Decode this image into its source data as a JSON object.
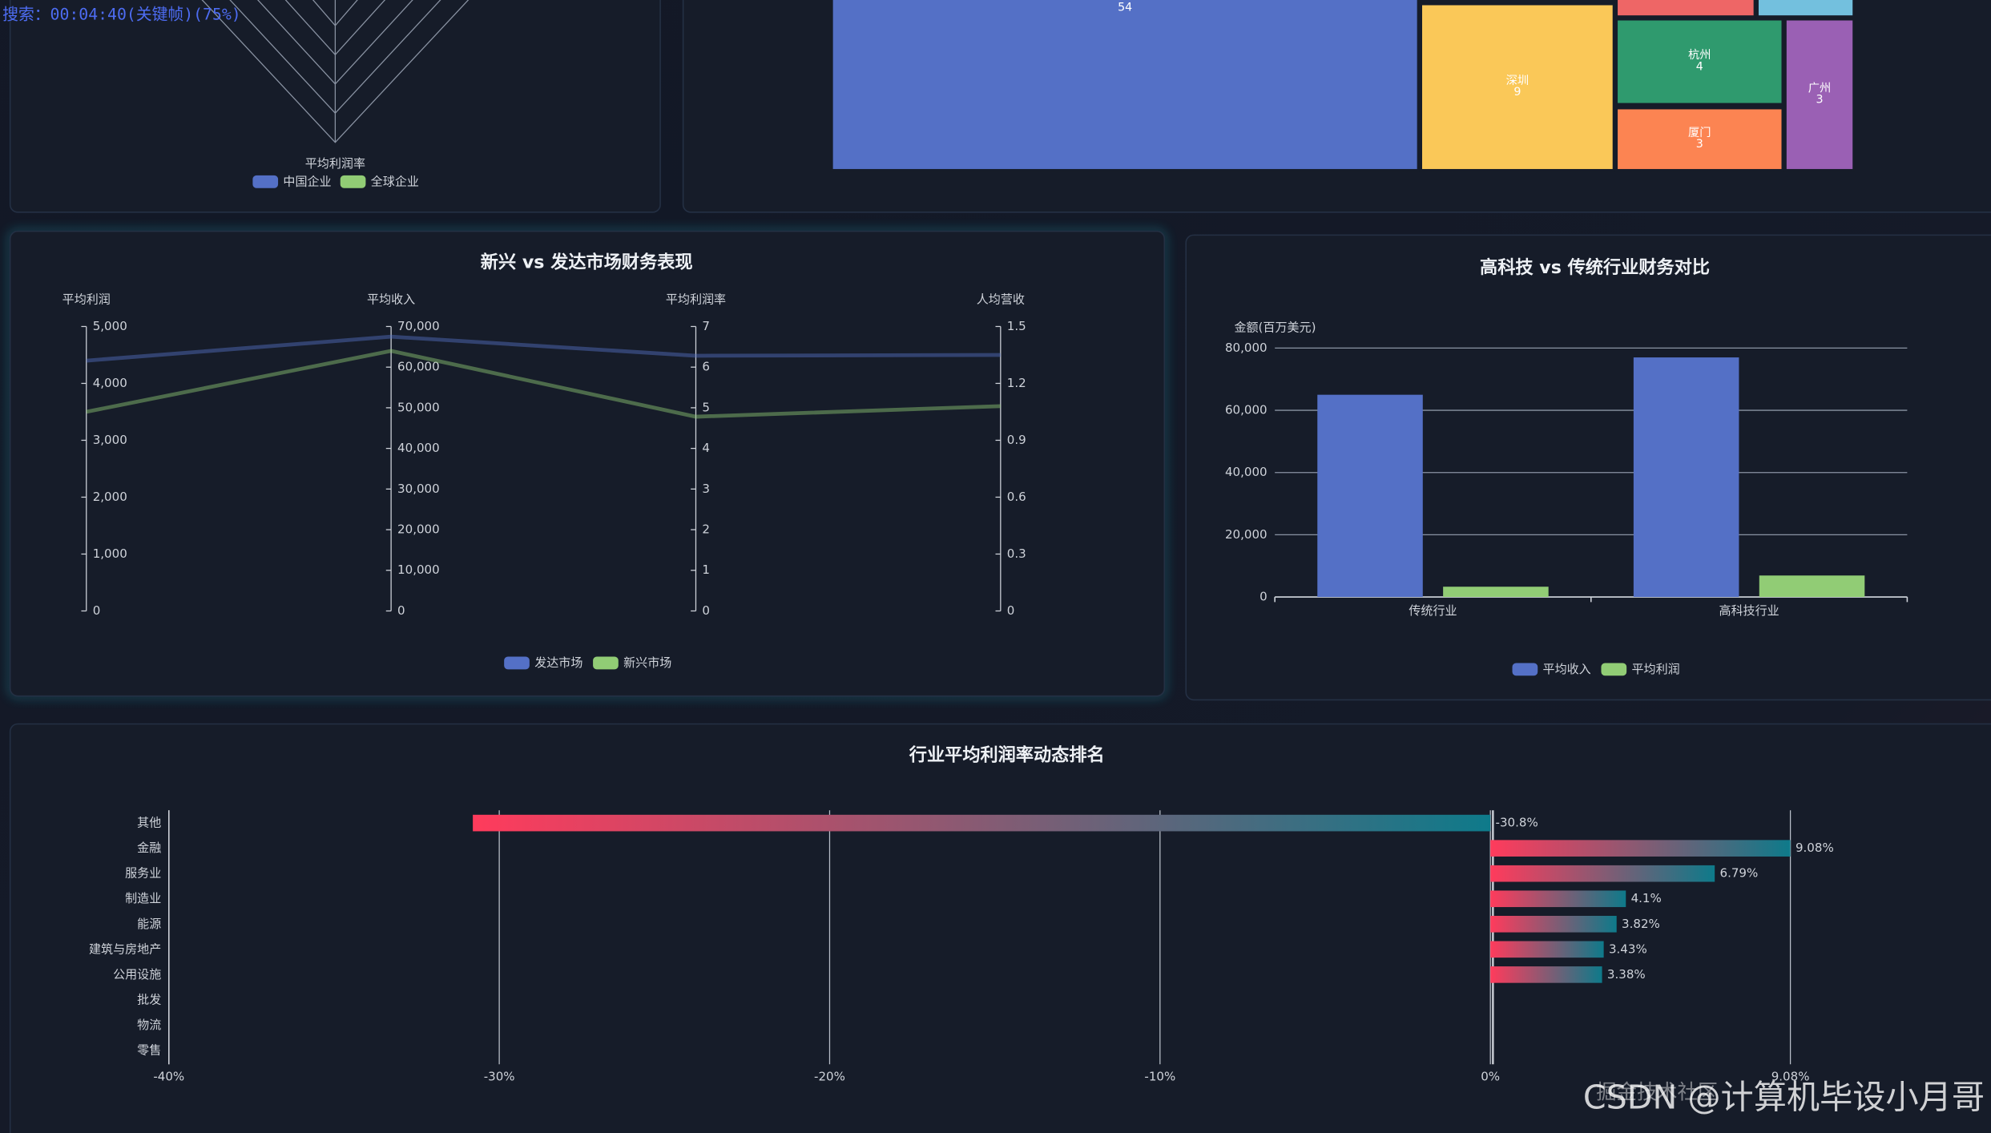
{
  "chart_data": [
    {
      "type": "radar",
      "indicators": [
        "平均利润率"
      ],
      "series": [
        {
          "name": "中国企业",
          "color": "#5470c6"
        },
        {
          "name": "全球企业",
          "color": "#91cc75"
        }
      ]
    },
    {
      "type": "treemap",
      "categories": [
        null,
        "深圳",
        "杭州",
        "厦门",
        "广州"
      ],
      "values": [
        54,
        9,
        4,
        3,
        3
      ],
      "colors": [
        "#5470c6",
        "#fac858",
        "#2f9a6e",
        "#fc8452",
        "#9a60b4"
      ]
    },
    {
      "type": "parallel",
      "title": "新兴 vs 发达市场财务表现",
      "axes": [
        {
          "name": "平均利润",
          "ylim": [
            0,
            5000
          ],
          "yticks": [
            0,
            {
              "value": 1000,
              "label": "1,000"
            },
            {
              "value": 2000,
              "label": "2,000"
            },
            {
              "value": 3000,
              "label": "3,000"
            },
            {
              "value": 4000,
              "label": "4,000"
            },
            {
              "value": 5000,
              "label": "5,000"
            }
          ]
        },
        {
          "name": "平均收入",
          "ylim": [
            0,
            70000
          ],
          "yticks": [
            0,
            {
              "value": 10000,
              "label": "10,000"
            },
            {
              "value": 20000,
              "label": "20,000"
            },
            {
              "value": 30000,
              "label": "30,000"
            },
            {
              "value": 40000,
              "label": "40,000"
            },
            {
              "value": 50000,
              "label": "50,000"
            },
            {
              "value": 60000,
              "label": "60,000"
            },
            {
              "value": 70000,
              "label": "70,000"
            }
          ]
        },
        {
          "name": "平均利润率",
          "ylim": [
            0,
            7
          ],
          "yticks": [
            0,
            1,
            2,
            3,
            4,
            5,
            6,
            7
          ]
        },
        {
          "name": "人均营收",
          "ylim": [
            0,
            1.5
          ],
          "yticks": [
            0,
            0.3,
            0.6,
            0.9,
            1.2,
            1.5
          ]
        }
      ],
      "series": [
        {
          "name": "发达市场",
          "color": "#5470c6",
          "values": [
            4400,
            67500,
            6.28,
            1.35
          ]
        },
        {
          "name": "新兴市场",
          "color": "#91cc75",
          "values": [
            3500,
            64000,
            4.78,
            1.08
          ]
        }
      ]
    },
    {
      "type": "bar",
      "title": "高科技 vs 传统行业财务对比",
      "y_label": "金额(百万美元)",
      "categories": [
        "传统行业",
        "高科技行业"
      ],
      "series": [
        {
          "name": "平均收入",
          "color": "#5470c6",
          "values": [
            65000,
            77000
          ]
        },
        {
          "name": "平均利润",
          "color": "#91cc75",
          "values": [
            3300,
            6900
          ]
        }
      ],
      "ylim": [
        0,
        80000
      ],
      "yticks": [
        0,
        {
          "value": 20000,
          "label": "20,000"
        },
        {
          "value": 40000,
          "label": "40,000"
        },
        {
          "value": 60000,
          "label": "60,000"
        },
        {
          "value": 80000,
          "label": "80,000"
        }
      ],
      "grid": true
    },
    {
      "type": "bar",
      "orientation": "horizontal",
      "title": "行业平均利润率动态排名",
      "categories": [
        "其他",
        "金融",
        "服务业",
        "制造业",
        "能源",
        "建筑与房地产",
        "公用设施",
        "批发",
        "物流",
        "零售"
      ],
      "values": [
        -30.8,
        9.08,
        6.79,
        4.1,
        3.82,
        3.43,
        3.38,
        null,
        null,
        null
      ],
      "value_labels": [
        "-30.8%",
        "9.08%",
        "6.79%",
        "4.1%",
        "3.82%",
        "3.43%",
        "3.38%",
        null,
        null,
        null
      ],
      "xlim": [
        -40,
        9.08
      ],
      "xticks": [
        {
          "value": -40,
          "label": "-40%"
        },
        {
          "value": -30,
          "label": "-30%"
        },
        {
          "value": -20,
          "label": "-20%"
        },
        {
          "value": -10,
          "label": "-10%"
        },
        {
          "value": 0,
          "label": "0%"
        },
        {
          "value": 9.08,
          "label": "9.08%"
        }
      ],
      "grid": true,
      "colors": [
        "#ff3b5c",
        "#0e7a8a"
      ]
    }
  ],
  "overlay": {
    "search": "搜索：00:04:40(关键帧)(75%)",
    "site": "掘金技术社区",
    "watermark": "CSDN @计算机毕设小月哥"
  }
}
